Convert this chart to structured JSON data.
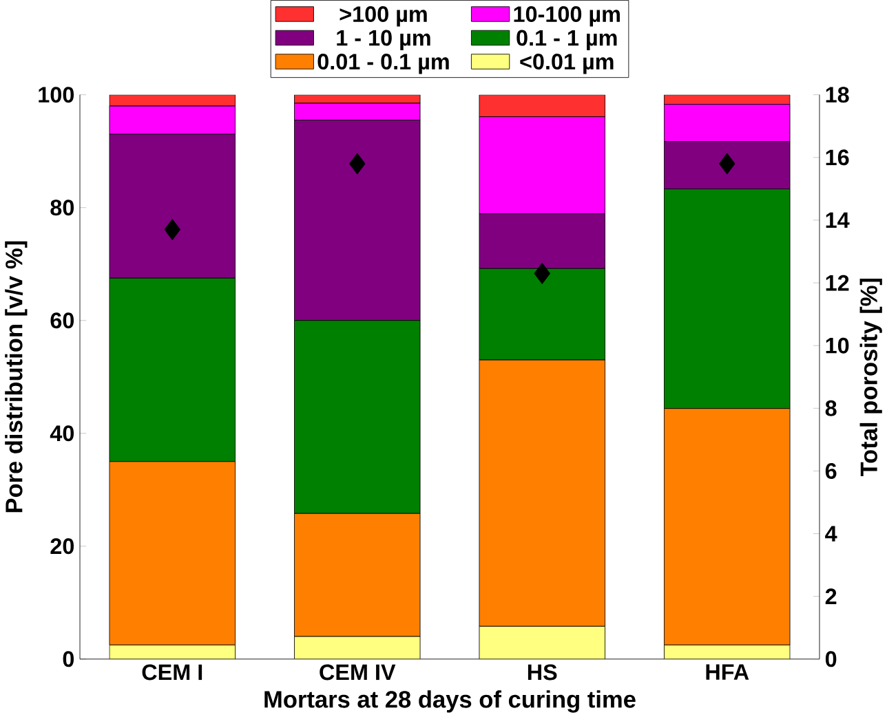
{
  "chart_data": {
    "type": "bar",
    "stacked": true,
    "xlabel": "Mortars at 28 days of curing time",
    "ylabel": "Pore distribution [v/v %]",
    "y2label": "Total porosity [%]",
    "categories": [
      "CEM I",
      "CEM IV",
      "HS",
      "HFA"
    ],
    "ylim": [
      0,
      100
    ],
    "yticks": [
      0,
      20,
      40,
      60,
      80,
      100
    ],
    "y2lim": [
      0,
      18
    ],
    "y2ticks": [
      0,
      2,
      4,
      6,
      8,
      10,
      12,
      14,
      16,
      18
    ],
    "legend": "top",
    "grid": false,
    "series": [
      {
        "name": "<0.01 µm",
        "color": "#ffff80",
        "values": [
          2.5,
          4,
          5.8,
          2.5
        ]
      },
      {
        "name": "0.01 - 0.1 µm",
        "color": "#ff8000",
        "values": [
          32.5,
          21.8,
          47.2,
          41.9
        ]
      },
      {
        "name": "0.1 - 1 µm",
        "color": "#008000",
        "values": [
          32.5,
          34.2,
          16.2,
          38.9
        ]
      },
      {
        "name": "1 - 10 µm",
        "color": "#800080",
        "values": [
          25.5,
          35.5,
          9.7,
          8.4
        ]
      },
      {
        "name": "10-100 µm",
        "color": "#ff00ff",
        "values": [
          5,
          3,
          17.2,
          6.6
        ]
      },
      {
        "name": ">100 µm",
        "color": "#ff3030",
        "values": [
          2,
          1.5,
          3.9,
          1.7
        ]
      },
      {
        "type": "scatter",
        "axis": "y2",
        "marker": "diamond",
        "color": "#000000",
        "values": [
          13.7,
          15.8,
          12.3,
          15.8
        ]
      }
    ]
  }
}
